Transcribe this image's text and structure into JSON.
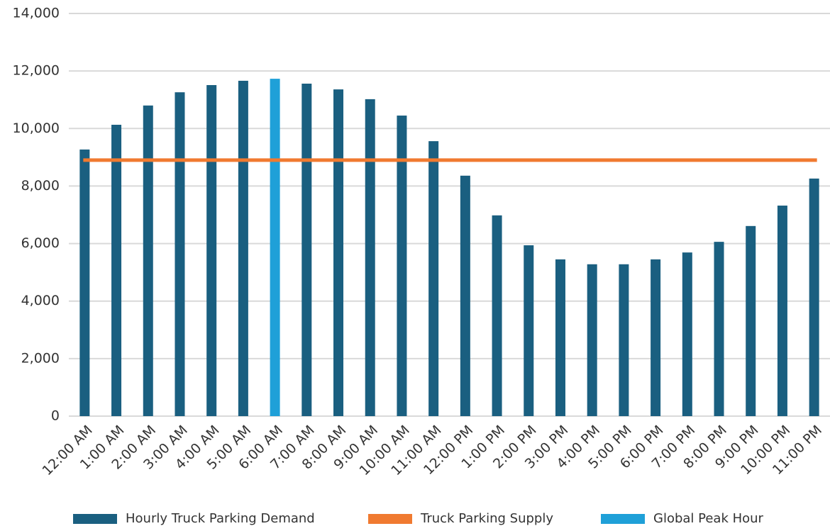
{
  "chart_data": {
    "type": "bar",
    "categories": [
      "12:00 AM",
      "1:00 AM",
      "2:00 AM",
      "3:00 AM",
      "4:00 AM",
      "5:00 AM",
      "6:00 AM",
      "7:00 AM",
      "8:00 AM",
      "9:00 AM",
      "10:00 AM",
      "11:00 AM",
      "12:00 PM",
      "1:00 PM",
      "2:00 PM",
      "3:00 PM",
      "4:00 PM",
      "5:00 PM",
      "6:00 PM",
      "7:00 PM",
      "8:00 PM",
      "9:00 PM",
      "10:00 PM",
      "11:00 PM"
    ],
    "series": [
      {
        "name": "Hourly Truck Parking Demand",
        "color": "#1a5f80",
        "values": [
          9270,
          10130,
          10800,
          11260,
          11510,
          11660,
          null,
          11560,
          11360,
          11020,
          10450,
          9560,
          8360,
          6980,
          5940,
          5450,
          5280,
          5280,
          5450,
          5690,
          6060,
          6610,
          7320,
          8260
        ]
      },
      {
        "name": "Global Peak Hour",
        "color": "#1fa0d8",
        "values": [
          null,
          null,
          null,
          null,
          null,
          null,
          11730,
          null,
          null,
          null,
          null,
          null,
          null,
          null,
          null,
          null,
          null,
          null,
          null,
          null,
          null,
          null,
          null,
          null
        ]
      }
    ],
    "supply": {
      "name": "Truck Parking Supply",
      "color": "#f07a30",
      "value": 8900
    },
    "ylim": [
      0,
      14000
    ],
    "yticks": [
      0,
      {
        "value": 2000,
        "label": "2,000"
      },
      {
        "value": 4000,
        "label": "4,000"
      },
      {
        "value": 6000,
        "label": "6,000"
      },
      {
        "value": 8000,
        "label": "8,000"
      },
      {
        "value": 10000,
        "label": "10,000"
      },
      {
        "value": 12000,
        "label": "12,000"
      },
      {
        "value": 14000,
        "label": "14,000"
      }
    ],
    "grid": true
  }
}
